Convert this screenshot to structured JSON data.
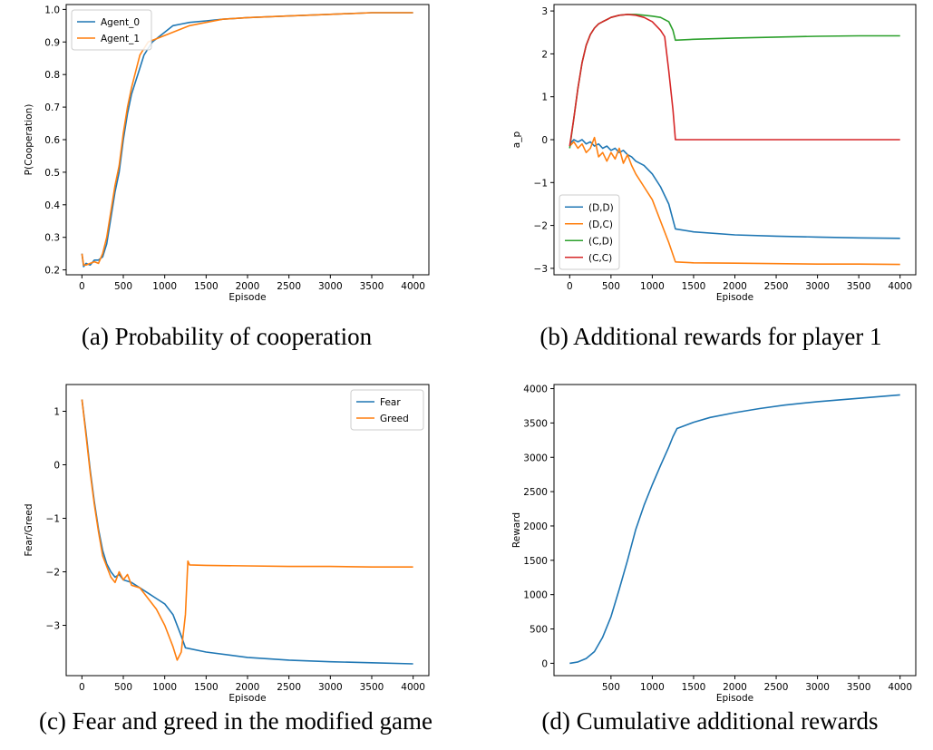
{
  "captions": {
    "a": "(a) Probability of cooperation",
    "b": "(b) Additional rewards for player 1",
    "c": "(c) Fear and greed in the modified game",
    "d": "(d) Cumulative additional rewards"
  },
  "chart_data": [
    {
      "id": "a",
      "type": "line",
      "xlabel": "Episode",
      "ylabel": "P(Cooperation)",
      "xlim": [
        -190,
        4190
      ],
      "ylim": [
        0.185,
        1.015
      ],
      "xticks": [
        0,
        500,
        1000,
        1500,
        2000,
        2500,
        3000,
        3500,
        4000
      ],
      "yticks": [
        0.2,
        0.3,
        0.4,
        0.5,
        0.6,
        0.7,
        0.8,
        0.9,
        1.0
      ],
      "ytick_labels": [
        "0.2",
        "0.3",
        "0.4",
        "0.5",
        "0.6",
        "0.7",
        "0.8",
        "0.9",
        "1.0"
      ],
      "legend": "top-left",
      "grid": false,
      "series": [
        {
          "name": "Agent_0",
          "color": "#1f77b4",
          "x": [
            0,
            20,
            50,
            100,
            150,
            200,
            250,
            300,
            350,
            400,
            450,
            500,
            550,
            600,
            650,
            700,
            750,
            800,
            850,
            900,
            1000,
            1100,
            1200,
            1300,
            1500,
            1700,
            2000,
            2500,
            3000,
            3500,
            4000
          ],
          "y": [
            0.25,
            0.21,
            0.22,
            0.215,
            0.23,
            0.23,
            0.24,
            0.28,
            0.36,
            0.44,
            0.5,
            0.6,
            0.68,
            0.74,
            0.78,
            0.82,
            0.86,
            0.88,
            0.9,
            0.91,
            0.93,
            0.95,
            0.955,
            0.96,
            0.965,
            0.97,
            0.975,
            0.98,
            0.985,
            0.99,
            0.99
          ]
        },
        {
          "name": "Agent_1",
          "color": "#ff7f0e",
          "x": [
            0,
            20,
            50,
            100,
            150,
            200,
            250,
            300,
            350,
            400,
            450,
            500,
            550,
            600,
            650,
            700,
            750,
            800,
            850,
            900,
            1000,
            1100,
            1200,
            1300,
            1500,
            1700,
            2000,
            2500,
            3000,
            3500,
            4000
          ],
          "y": [
            0.25,
            0.215,
            0.215,
            0.22,
            0.225,
            0.22,
            0.25,
            0.3,
            0.38,
            0.46,
            0.52,
            0.62,
            0.7,
            0.76,
            0.81,
            0.86,
            0.88,
            0.9,
            0.905,
            0.91,
            0.92,
            0.93,
            0.94,
            0.95,
            0.96,
            0.97,
            0.975,
            0.98,
            0.985,
            0.99,
            0.99
          ]
        }
      ]
    },
    {
      "id": "b",
      "type": "line",
      "xlabel": "Episode",
      "ylabel": "a_p",
      "xlim": [
        -190,
        4190
      ],
      "ylim": [
        -3.15,
        3.15
      ],
      "xticks": [
        0,
        500,
        1000,
        1500,
        2000,
        2500,
        3000,
        3500,
        4000
      ],
      "yticks": [
        -3,
        -2,
        -1,
        0,
        1,
        2,
        3
      ],
      "ytick_labels": [
        "−3",
        "−2",
        "−1",
        "0",
        "1",
        "2",
        "3"
      ],
      "legend": "bottom-left",
      "grid": false,
      "series": [
        {
          "name": "(D,D)",
          "color": "#1f77b4",
          "x": [
            0,
            50,
            100,
            150,
            200,
            250,
            300,
            350,
            400,
            450,
            500,
            550,
            600,
            650,
            700,
            750,
            800,
            900,
            1000,
            1100,
            1200,
            1280,
            1500,
            2000,
            2500,
            3000,
            3500,
            4000
          ],
          "y": [
            -0.1,
            0.0,
            -0.05,
            0.0,
            -0.1,
            -0.05,
            -0.15,
            -0.1,
            -0.2,
            -0.15,
            -0.25,
            -0.2,
            -0.3,
            -0.25,
            -0.35,
            -0.4,
            -0.5,
            -0.6,
            -0.8,
            -1.1,
            -1.5,
            -2.08,
            -2.15,
            -2.22,
            -2.25,
            -2.27,
            -2.29,
            -2.3
          ]
        },
        {
          "name": "(D,C)",
          "color": "#ff7f0e",
          "x": [
            0,
            50,
            100,
            150,
            200,
            250,
            300,
            350,
            400,
            450,
            500,
            550,
            600,
            650,
            700,
            750,
            800,
            900,
            1000,
            1100,
            1200,
            1280,
            1500,
            2000,
            2500,
            3000,
            3500,
            4000
          ],
          "y": [
            -0.15,
            -0.05,
            -0.2,
            -0.1,
            -0.3,
            -0.2,
            0.05,
            -0.4,
            -0.3,
            -0.5,
            -0.3,
            -0.45,
            -0.2,
            -0.55,
            -0.35,
            -0.6,
            -0.8,
            -1.1,
            -1.4,
            -1.9,
            -2.4,
            -2.85,
            -2.87,
            -2.88,
            -2.89,
            -2.9,
            -2.9,
            -2.91
          ]
        },
        {
          "name": "(C,D)",
          "color": "#2ca02c",
          "x": [
            0,
            50,
            100,
            150,
            200,
            250,
            300,
            350,
            400,
            450,
            500,
            600,
            700,
            800,
            900,
            1000,
            1100,
            1200,
            1250,
            1280,
            1500,
            2000,
            2500,
            3000,
            3500,
            4000
          ],
          "y": [
            -0.2,
            0.5,
            1.2,
            1.8,
            2.2,
            2.45,
            2.6,
            2.7,
            2.75,
            2.8,
            2.85,
            2.9,
            2.92,
            2.92,
            2.9,
            2.88,
            2.85,
            2.75,
            2.55,
            2.32,
            2.34,
            2.37,
            2.39,
            2.41,
            2.42,
            2.42
          ]
        },
        {
          "name": "(C,C)",
          "color": "#d62728",
          "x": [
            0,
            50,
            100,
            150,
            200,
            250,
            300,
            350,
            400,
            450,
            500,
            600,
            700,
            800,
            900,
            1000,
            1100,
            1150,
            1200,
            1250,
            1280,
            1500,
            2000,
            2500,
            3000,
            3500,
            4000
          ],
          "y": [
            -0.15,
            0.5,
            1.2,
            1.8,
            2.2,
            2.45,
            2.6,
            2.7,
            2.75,
            2.8,
            2.85,
            2.9,
            2.92,
            2.9,
            2.85,
            2.75,
            2.55,
            2.4,
            1.6,
            0.7,
            0.0,
            0.0,
            0.0,
            0.0,
            0.0,
            0.0,
            0.0
          ]
        }
      ]
    },
    {
      "id": "c",
      "type": "line",
      "xlabel": "Episode",
      "ylabel": "Fear/Greed",
      "xlim": [
        -190,
        4190
      ],
      "ylim": [
        -3.94,
        1.5
      ],
      "xticks": [
        0,
        500,
        1000,
        1500,
        2000,
        2500,
        3000,
        3500,
        4000
      ],
      "yticks": [
        -3,
        -2,
        -1,
        0,
        1
      ],
      "ytick_labels": [
        "−3",
        "−2",
        "−1",
        "0",
        "1"
      ],
      "legend": "top-right",
      "grid": false,
      "series": [
        {
          "name": "Fear",
          "color": "#1f77b4",
          "x": [
            0,
            50,
            100,
            150,
            200,
            250,
            300,
            350,
            400,
            450,
            500,
            600,
            700,
            800,
            900,
            1000,
            1100,
            1200,
            1250,
            1500,
            2000,
            2500,
            3000,
            3500,
            4000
          ],
          "y": [
            1.22,
            0.6,
            -0.1,
            -0.7,
            -1.2,
            -1.6,
            -1.85,
            -2.0,
            -2.1,
            -2.05,
            -2.15,
            -2.2,
            -2.3,
            -2.4,
            -2.5,
            -2.6,
            -2.8,
            -3.2,
            -3.42,
            -3.5,
            -3.6,
            -3.65,
            -3.68,
            -3.7,
            -3.72
          ]
        },
        {
          "name": "Greed",
          "color": "#ff7f0e",
          "x": [
            0,
            50,
            100,
            150,
            200,
            250,
            300,
            350,
            400,
            450,
            500,
            550,
            600,
            700,
            800,
            900,
            1000,
            1100,
            1150,
            1200,
            1250,
            1280,
            1300,
            1500,
            2000,
            2500,
            3000,
            3500,
            4000
          ],
          "y": [
            1.22,
            0.55,
            -0.15,
            -0.75,
            -1.25,
            -1.7,
            -1.9,
            -2.1,
            -2.2,
            -2.0,
            -2.15,
            -2.05,
            -2.25,
            -2.3,
            -2.5,
            -2.7,
            -3.0,
            -3.4,
            -3.65,
            -3.5,
            -2.8,
            -1.8,
            -1.87,
            -1.88,
            -1.89,
            -1.9,
            -1.9,
            -1.91,
            -1.91
          ]
        }
      ]
    },
    {
      "id": "d",
      "type": "line",
      "xlabel": "Episode",
      "ylabel": "Reward",
      "xlim": [
        -190,
        4190
      ],
      "ylim": [
        -180,
        4060
      ],
      "xticks": [
        500,
        1000,
        1500,
        2000,
        2500,
        3000,
        3500,
        4000
      ],
      "yticks": [
        0,
        500,
        1000,
        1500,
        2000,
        2500,
        3000,
        3500,
        4000
      ],
      "ytick_labels": [
        "0",
        "500",
        "1000",
        "1500",
        "2000",
        "2500",
        "3000",
        "3500",
        "4000"
      ],
      "legend": "none",
      "grid": false,
      "series": [
        {
          "color": "#1f77b4",
          "x": [
            0,
            100,
            200,
            300,
            400,
            500,
            600,
            700,
            800,
            900,
            1000,
            1100,
            1200,
            1250,
            1300,
            1500,
            1700,
            2000,
            2300,
            2600,
            3000,
            3300,
            3600,
            3800,
            4000
          ],
          "y": [
            0,
            20,
            70,
            170,
            380,
            680,
            1080,
            1500,
            1950,
            2300,
            2600,
            2880,
            3150,
            3300,
            3420,
            3510,
            3580,
            3650,
            3710,
            3760,
            3810,
            3840,
            3870,
            3890,
            3910
          ]
        }
      ]
    }
  ]
}
